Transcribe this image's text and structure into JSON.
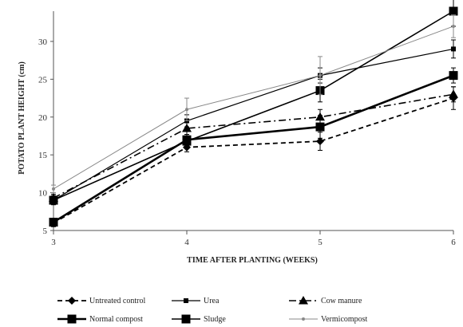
{
  "chart_data": {
    "type": "line",
    "title": "",
    "xlabel": "TIME AFTER PLANTING (WEEKS)",
    "ylabel": "POTATO PLANT HEIGHT (cm)",
    "x": [
      3,
      4,
      5,
      6
    ],
    "x_tick_labels": [
      "3",
      "4",
      "5",
      "6"
    ],
    "xlim": [
      3,
      6
    ],
    "ylim": [
      5,
      34
    ],
    "y_ticks": [
      5,
      10,
      15,
      20,
      25,
      30
    ],
    "y_tick_labels": [
      "5",
      "10",
      "15",
      "20",
      "25",
      "30"
    ],
    "grid": false,
    "legend_position": "bottom",
    "series": [
      {
        "name": "Untreated control",
        "values": [
          6.0,
          16.0,
          16.8,
          22.5
        ],
        "errors": [
          0.5,
          0.6,
          1.2,
          1.5
        ],
        "color": "#000000",
        "dash": "dashed",
        "marker": "diamond",
        "width": 1.8
      },
      {
        "name": "Urea",
        "values": [
          9.0,
          19.5,
          25.5,
          29.0
        ],
        "errors": [
          0.6,
          0.8,
          1.0,
          1.2
        ],
        "color": "#000000",
        "dash": "solid",
        "marker": "small-square",
        "width": 1.2
      },
      {
        "name": "Cow manure",
        "values": [
          9.3,
          18.5,
          20.0,
          23.0
        ],
        "errors": [
          0.5,
          0.8,
          1.0,
          1.0
        ],
        "color": "#000000",
        "dash": "dashdot",
        "marker": "triangle",
        "width": 1.6
      },
      {
        "name": "Normal compost",
        "values": [
          6.1,
          17.0,
          18.7,
          25.5
        ],
        "errors": [
          0.5,
          0.7,
          1.5,
          1.0
        ],
        "color": "#000000",
        "dash": "solid",
        "marker": "square",
        "width": 2.6
      },
      {
        "name": "Sludge",
        "values": [
          9.0,
          16.8,
          23.5,
          34.0
        ],
        "errors": [
          0.5,
          0.6,
          1.5,
          2.0
        ],
        "color": "#000000",
        "dash": "solid",
        "marker": "square",
        "width": 1.6
      },
      {
        "name": "Vermicompost",
        "values": [
          10.5,
          21.0,
          25.5,
          32.0
        ],
        "errors": [
          0.5,
          1.5,
          2.5,
          1.5
        ],
        "color": "#888888",
        "dash": "solid",
        "marker": "dot",
        "width": 1.0
      }
    ]
  }
}
